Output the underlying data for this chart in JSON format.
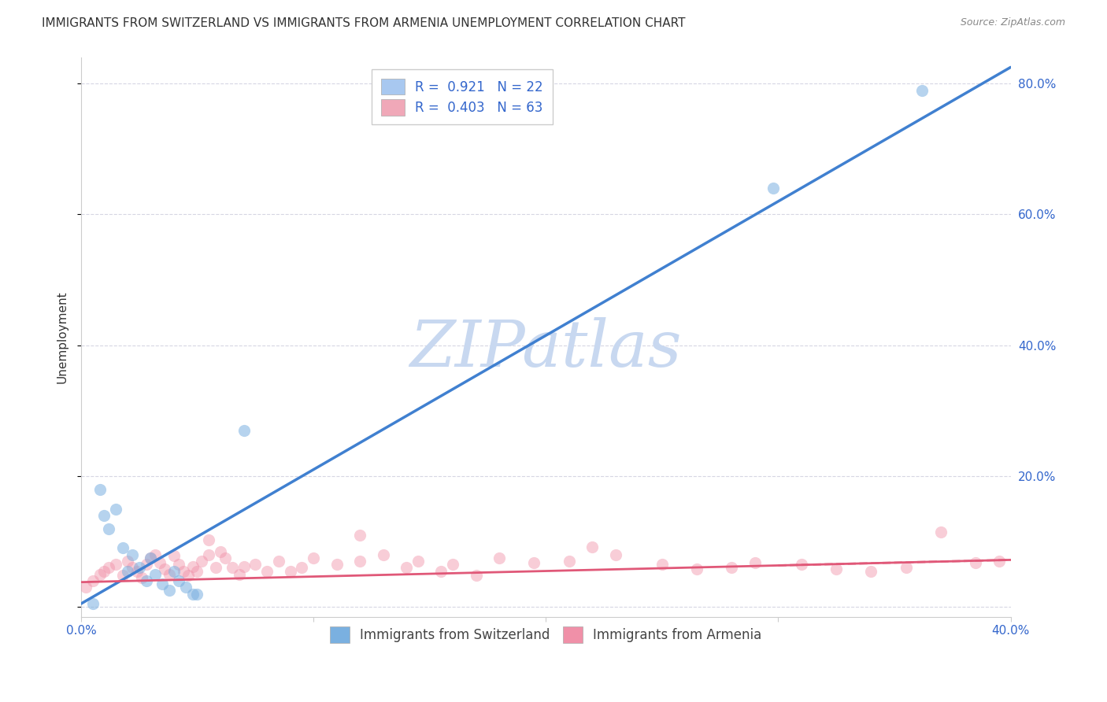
{
  "title": "IMMIGRANTS FROM SWITZERLAND VS IMMIGRANTS FROM ARMENIA UNEMPLOYMENT CORRELATION CHART",
  "source": "Source: ZipAtlas.com",
  "ylabel": "Unemployment",
  "xmin": 0.0,
  "xmax": 0.4,
  "ymin": -0.015,
  "ymax": 0.84,
  "yticks": [
    0.0,
    0.2,
    0.4,
    0.6,
    0.8
  ],
  "ytick_labels": [
    "",
    "20.0%",
    "40.0%",
    "60.0%",
    "80.0%"
  ],
  "xticks": [
    0.0,
    0.1,
    0.2,
    0.3,
    0.4
  ],
  "xtick_labels": [
    "0.0%",
    "",
    "",
    "",
    "40.0%"
  ],
  "legend_entries": [
    {
      "label": "R =  0.921   N = 22",
      "color": "#a8c8f0"
    },
    {
      "label": "R =  0.403   N = 63",
      "color": "#f0a8b8"
    }
  ],
  "series_switzerland": {
    "name": "Immigrants from Switzerland",
    "color": "#7ab0e0",
    "line_color": "#4080d0",
    "marker_size": 120,
    "alpha": 0.55,
    "x": [
      0.005,
      0.008,
      0.01,
      0.012,
      0.015,
      0.018,
      0.02,
      0.022,
      0.025,
      0.028,
      0.03,
      0.032,
      0.035,
      0.038,
      0.04,
      0.042,
      0.045,
      0.048,
      0.05,
      0.07,
      0.298,
      0.362
    ],
    "y": [
      0.005,
      0.18,
      0.14,
      0.12,
      0.15,
      0.09,
      0.055,
      0.08,
      0.06,
      0.04,
      0.075,
      0.05,
      0.035,
      0.025,
      0.055,
      0.04,
      0.03,
      0.02,
      0.02,
      0.27,
      0.64,
      0.79
    ]
  },
  "series_armenia": {
    "name": "Immigrants from Armenia",
    "color": "#f090a8",
    "line_color": "#e05878",
    "marker_size": 120,
    "alpha": 0.45,
    "x": [
      0.002,
      0.005,
      0.008,
      0.01,
      0.012,
      0.015,
      0.018,
      0.02,
      0.022,
      0.024,
      0.026,
      0.028,
      0.03,
      0.032,
      0.034,
      0.036,
      0.038,
      0.04,
      0.042,
      0.044,
      0.046,
      0.048,
      0.05,
      0.052,
      0.055,
      0.058,
      0.06,
      0.062,
      0.065,
      0.068,
      0.07,
      0.075,
      0.08,
      0.085,
      0.09,
      0.095,
      0.1,
      0.11,
      0.12,
      0.13,
      0.14,
      0.145,
      0.155,
      0.16,
      0.17,
      0.18,
      0.195,
      0.21,
      0.23,
      0.25,
      0.265,
      0.28,
      0.29,
      0.31,
      0.325,
      0.34,
      0.355,
      0.37,
      0.385,
      0.395,
      0.055,
      0.12,
      0.22
    ],
    "y": [
      0.03,
      0.04,
      0.05,
      0.055,
      0.06,
      0.065,
      0.048,
      0.07,
      0.06,
      0.055,
      0.045,
      0.065,
      0.075,
      0.08,
      0.068,
      0.058,
      0.05,
      0.078,
      0.065,
      0.055,
      0.048,
      0.062,
      0.055,
      0.07,
      0.08,
      0.06,
      0.085,
      0.075,
      0.06,
      0.05,
      0.062,
      0.065,
      0.055,
      0.07,
      0.055,
      0.06,
      0.075,
      0.065,
      0.07,
      0.08,
      0.06,
      0.07,
      0.055,
      0.065,
      0.048,
      0.075,
      0.068,
      0.07,
      0.08,
      0.065,
      0.058,
      0.06,
      0.068,
      0.065,
      0.058,
      0.055,
      0.06,
      0.115,
      0.068,
      0.07,
      0.102,
      0.11,
      0.092
    ]
  },
  "sw_regression": {
    "slope": 2.05,
    "intercept": 0.005
  },
  "ar_regression": {
    "slope": 0.085,
    "intercept": 0.038
  },
  "watermark_text": "ZIPatlas",
  "watermark_color": "#c8d8f0",
  "bg_color": "#ffffff",
  "grid_color": "#ccccdd",
  "title_fontsize": 11,
  "axis_label_fontsize": 11,
  "tick_fontsize": 11,
  "legend_fontsize": 12
}
